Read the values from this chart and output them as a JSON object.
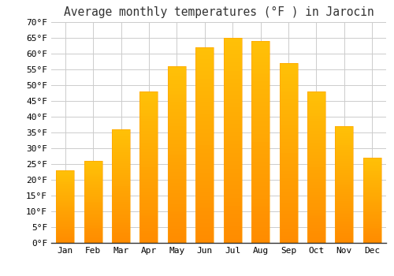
{
  "title": "Average monthly temperatures (°F ) in Jarocin",
  "months": [
    "Jan",
    "Feb",
    "Mar",
    "Apr",
    "May",
    "Jun",
    "Jul",
    "Aug",
    "Sep",
    "Oct",
    "Nov",
    "Dec"
  ],
  "values": [
    23,
    26,
    36,
    48,
    56,
    62,
    65,
    64,
    57,
    48,
    37,
    27
  ],
  "bar_color_top": "#FFC107",
  "bar_color_bottom": "#FF8C00",
  "ylim": [
    0,
    70
  ],
  "ytick_step": 5,
  "background_color": "#ffffff",
  "grid_color": "#cccccc",
  "title_fontsize": 10.5,
  "tick_fontsize": 8,
  "bar_width": 0.65
}
